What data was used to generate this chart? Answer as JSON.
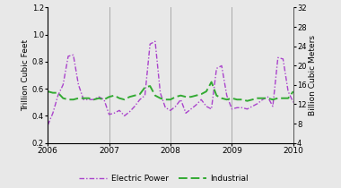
{
  "title": "",
  "ylabel_left": "Trillion Cubic Feet",
  "ylabel_right": "Billion Cubic Meters",
  "ylim_left": [
    0.2,
    1.2
  ],
  "ylim_right": [
    4,
    32
  ],
  "yticks_left": [
    0.2,
    0.4,
    0.6,
    0.8,
    1.0,
    1.2
  ],
  "yticks_right": [
    4,
    8,
    12,
    16,
    20,
    24,
    28,
    32
  ],
  "xlim": [
    2006.0,
    2010.0
  ],
  "xticks": [
    2006,
    2007,
    2008,
    2009,
    2010
  ],
  "vlines": [
    2007.0,
    2008.0,
    2009.0
  ],
  "legend_labels": [
    "Electric Power",
    "Industrial"
  ],
  "electric_color": "#AA44CC",
  "industrial_color": "#33AA33",
  "bg_color": "#E8E8E8",
  "electric_power_y": [
    0.33,
    0.42,
    0.55,
    0.63,
    0.84,
    0.85,
    0.63,
    0.52,
    0.52,
    0.52,
    0.54,
    0.52,
    0.41,
    0.42,
    0.44,
    0.4,
    0.43,
    0.47,
    0.52,
    0.55,
    0.93,
    0.95,
    0.57,
    0.46,
    0.44,
    0.47,
    0.52,
    0.42,
    0.45,
    0.48,
    0.52,
    0.47,
    0.45,
    0.75,
    0.77,
    0.55,
    0.45,
    0.46,
    0.46,
    0.45,
    0.47,
    0.49,
    0.52,
    0.54,
    0.47,
    0.83,
    0.82,
    0.58,
    0.5
  ],
  "industrial_y": [
    0.58,
    0.57,
    0.57,
    0.53,
    0.52,
    0.52,
    0.53,
    0.53,
    0.53,
    0.52,
    0.53,
    0.52,
    0.54,
    0.55,
    0.53,
    0.52,
    0.54,
    0.55,
    0.56,
    0.61,
    0.62,
    0.55,
    0.53,
    0.52,
    0.52,
    0.54,
    0.55,
    0.54,
    0.54,
    0.55,
    0.56,
    0.58,
    0.65,
    0.55,
    0.53,
    0.52,
    0.53,
    0.52,
    0.52,
    0.51,
    0.52,
    0.53,
    0.53,
    0.53,
    0.52,
    0.53,
    0.53,
    0.53,
    0.58
  ]
}
